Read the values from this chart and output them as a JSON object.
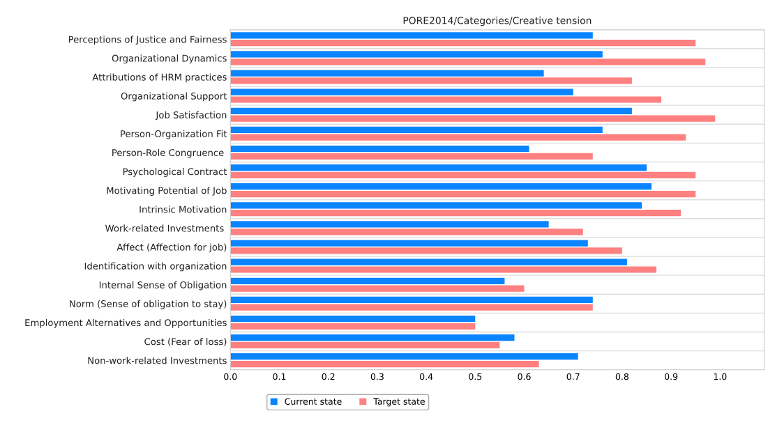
{
  "chart_data": {
    "type": "bar",
    "orientation": "horizontal",
    "title": "PORE2014/Categories/Creative tension",
    "categories": [
      "Perceptions of Justice and Fairness",
      "Organizational Dynamics",
      "Attributions of HRM practices",
      "Organizational Support",
      "Job Satisfaction",
      "Person-Organization Fit",
      "Person-Role Congruence ",
      "Psychological Contract",
      "Motivating Potential of Job",
      "Intrinsic Motivation",
      "Work-related Investments ",
      "Affect (Affection for job)",
      "Identification with organization",
      "Internal Sense of Obligation",
      "Norm (Sense of obligation to stay)",
      "Employment Alternatives and Opportunities",
      "Cost (Fear of loss)",
      "Non-work-related Investments"
    ],
    "series": [
      {
        "name": "Current state",
        "color": "#0a84ff",
        "values": [
          0.74,
          0.76,
          0.64,
          0.7,
          0.82,
          0.76,
          0.61,
          0.85,
          0.86,
          0.84,
          0.65,
          0.73,
          0.81,
          0.56,
          0.74,
          0.5,
          0.58,
          0.71
        ]
      },
      {
        "name": "Target state",
        "color": "#ff8080",
        "values": [
          0.95,
          0.97,
          0.82,
          0.88,
          0.99,
          0.93,
          0.74,
          0.95,
          0.95,
          0.92,
          0.72,
          0.8,
          0.87,
          0.6,
          0.74,
          0.5,
          0.55,
          0.63
        ]
      }
    ],
    "xlim": [
      0,
      1.09
    ],
    "xticks": [
      {
        "value": 0,
        "label": "0.0"
      },
      0.1,
      0.2,
      0.3,
      0.4,
      0.5,
      0.6,
      0.7,
      0.8,
      0.9,
      {
        "value": 1,
        "label": "1.0"
      }
    ],
    "legend": "bottom"
  }
}
